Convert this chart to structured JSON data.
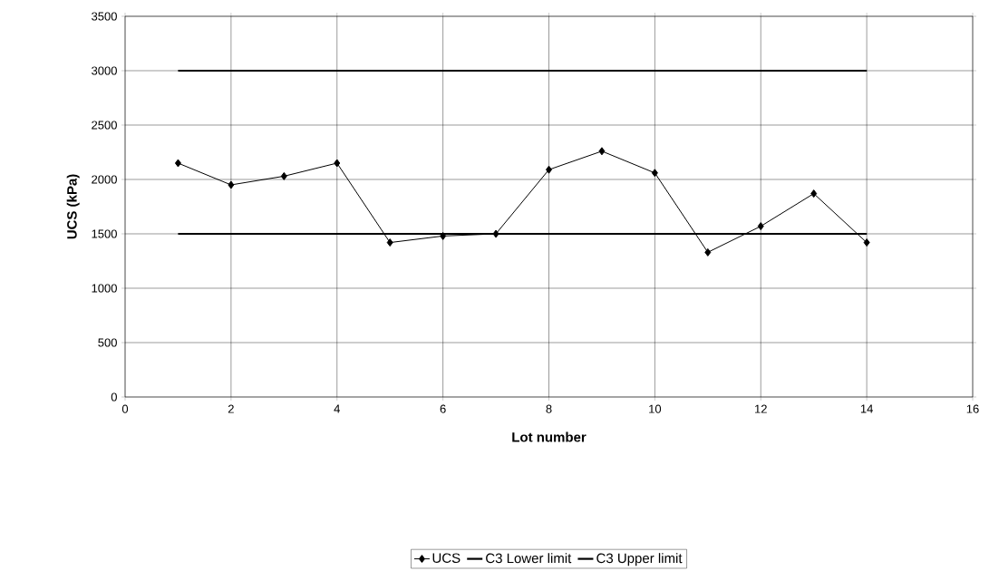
{
  "chart_data": {
    "type": "line",
    "xlabel": "Lot number",
    "ylabel": "UCS (kPa)",
    "xlim": [
      0,
      16
    ],
    "xticks": [
      0,
      2,
      4,
      6,
      8,
      10,
      12,
      14,
      16
    ],
    "ylim": [
      0,
      3500
    ],
    "yticks": [
      0,
      500,
      1000,
      1500,
      2000,
      2500,
      3000,
      3500
    ],
    "grid": true,
    "legend": "bottom",
    "line_style": "solid",
    "series": [
      {
        "name": "UCS",
        "color": "#000000",
        "marker": "diamond",
        "x": [
          1,
          2,
          3,
          4,
          5,
          6,
          7,
          8,
          9,
          10,
          11,
          12,
          13,
          14
        ],
        "values": [
          2150,
          1950,
          2030,
          2150,
          1420,
          1480,
          1500,
          2090,
          2260,
          2060,
          1330,
          1570,
          1870,
          1420
        ]
      },
      {
        "name": "C3 Lower limit",
        "color": "#000000",
        "marker": "none",
        "x": [
          1,
          14
        ],
        "values": [
          1500,
          1500
        ]
      },
      {
        "name": "C3 Upper limit",
        "color": "#000000",
        "marker": "none",
        "x": [
          1,
          14
        ],
        "values": [
          3000,
          3000
        ]
      }
    ]
  }
}
